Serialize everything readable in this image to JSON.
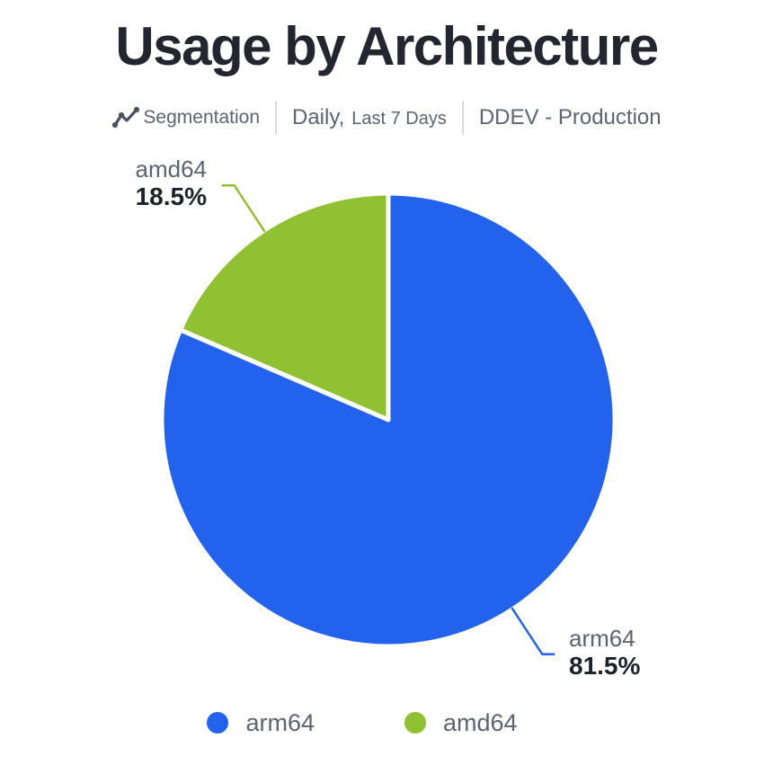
{
  "title": "Usage by Architecture",
  "subtitle": {
    "segmentation_label": "Segmentation",
    "period_primary": "Daily,",
    "period_secondary": "Last 7 Days",
    "source": "DDEV - Production"
  },
  "chart_data": {
    "type": "pie",
    "title": "Usage by Architecture",
    "slices": [
      {
        "label": "arm64",
        "value_pct": 81.5,
        "display_value": "81.5%",
        "color": "#2262ec"
      },
      {
        "label": "amd64",
        "value_pct": 18.5,
        "display_value": "18.5%",
        "color": "#8fc133"
      }
    ],
    "start_angle_deg": 0,
    "direction": "clockwise",
    "slice_border_color": "#ffffff",
    "legend_position": "bottom",
    "legend": [
      "arm64",
      "amd64"
    ]
  }
}
